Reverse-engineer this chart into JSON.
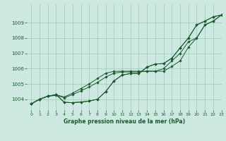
{
  "title": "Graphe pression niveau de la mer (hPa)",
  "background_color": "#cce8e0",
  "grid_color": "#99ccbb",
  "line_color": "#1a5c2a",
  "xlim": [
    -0.5,
    23
  ],
  "ylim": [
    1003.3,
    1010.2
  ],
  "yticks": [
    1004,
    1005,
    1006,
    1007,
    1008,
    1009
  ],
  "xticks": [
    0,
    1,
    2,
    3,
    4,
    5,
    6,
    7,
    8,
    9,
    10,
    11,
    12,
    13,
    14,
    15,
    16,
    17,
    18,
    19,
    20,
    21,
    22,
    23
  ],
  "series": [
    [
      1003.7,
      1004.0,
      1004.2,
      1004.3,
      1003.8,
      1003.78,
      1003.82,
      1003.88,
      1004.0,
      1004.5,
      1005.2,
      1005.58,
      1005.68,
      1005.68,
      1006.1,
      1006.3,
      1006.33,
      1006.68,
      1007.35,
      1008.0,
      1008.85,
      1009.1,
      1009.38,
      1009.5
    ],
    [
      1003.7,
      1004.0,
      1004.2,
      1004.3,
      1004.15,
      1004.4,
      1004.7,
      1005.0,
      1005.35,
      1005.7,
      1005.82,
      1005.83,
      1005.83,
      1005.83,
      1005.83,
      1005.83,
      1005.83,
      1006.15,
      1006.5,
      1007.4,
      1008.0,
      1008.85,
      1009.1,
      1009.5
    ],
    [
      1003.7,
      1004.0,
      1004.2,
      1004.25,
      1004.1,
      1004.3,
      1004.55,
      1004.8,
      1005.1,
      1005.45,
      1005.7,
      1005.78,
      1005.78,
      1005.78,
      1005.83,
      1005.83,
      1006.0,
      1006.5,
      1007.0,
      1007.75,
      1008.0,
      1008.85,
      1009.1,
      1009.5
    ],
    [
      1003.7,
      1004.0,
      1004.2,
      1004.3,
      1003.8,
      1003.78,
      1003.82,
      1003.88,
      1004.0,
      1004.5,
      1005.2,
      1005.58,
      1005.68,
      1005.68,
      1006.1,
      1006.3,
      1006.33,
      1006.68,
      1007.35,
      1008.0,
      1008.85,
      1009.1,
      1009.38,
      1009.5
    ]
  ],
  "figwidth": 3.2,
  "figheight": 2.0,
  "dpi": 100
}
